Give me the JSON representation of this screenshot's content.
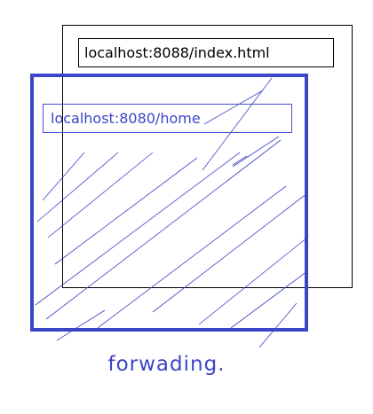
{
  "diagram": {
    "back_window": {
      "url": "localhost:8088/index.html"
    },
    "front_window": {
      "url": "localhost:8080/home"
    },
    "caption": "forwading.",
    "colors": {
      "accent": "#3c44c8",
      "outline": "#000000"
    }
  }
}
